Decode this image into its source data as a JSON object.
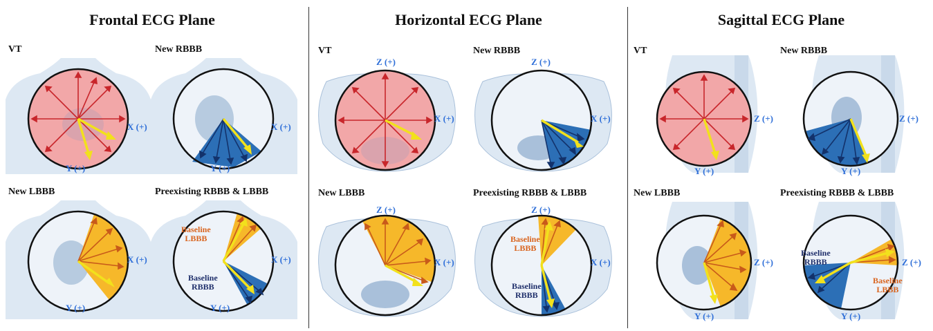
{
  "colors": {
    "vt_fill": "#f2a7a8",
    "vt_arrow": "#c8262b",
    "rbbb_fill": "#2c6fb6",
    "rbbb_arrow": "#13326b",
    "lbbb_fill": "#f6b82a",
    "lbbb_arrow": "#c85a1a",
    "mean_vector": "#f2e11c",
    "axis_label": "#2f6fd8",
    "anatomy": "#c9d9ea"
  },
  "planes": [
    {
      "title": "Frontal ECG Plane",
      "panels": [
        {
          "label": "VT",
          "x_axis": "X (+)",
          "y_axis": "Y (+)"
        },
        {
          "label": "New RBBB",
          "x_axis": "X (+)",
          "y_axis": "Y (+)"
        },
        {
          "label": "New LBBB",
          "x_axis": "X (+)",
          "y_axis": "Y (+)"
        },
        {
          "label": "Preexisting RBBB & LBBB",
          "x_axis": "X (+)",
          "y_axis": "Y (+)",
          "lbbb_note": [
            "Baseline",
            "LBBB"
          ],
          "rbbb_note": [
            "Baseline",
            "RBBB"
          ]
        }
      ]
    },
    {
      "title": "Horizontal ECG Plane",
      "panels": [
        {
          "label": "VT",
          "x_axis": "X (+)",
          "z_axis": "Z (+)"
        },
        {
          "label": "New RBBB",
          "x_axis": "X (+)",
          "z_axis": "Z (+)"
        },
        {
          "label": "New LBBB",
          "x_axis": "X (+)",
          "z_axis": "Z (+)"
        },
        {
          "label": "Preexisting RBBB & LBBB",
          "x_axis": "X (+)",
          "z_axis": "Z (+)",
          "lbbb_note": [
            "Baseline",
            "LBBB"
          ],
          "rbbb_note": [
            "Baseline",
            "RBBB"
          ]
        }
      ]
    },
    {
      "title": "Sagittal ECG Plane",
      "panels": [
        {
          "label": "VT",
          "z_axis": "Z (+)",
          "y_axis": "Y (+)"
        },
        {
          "label": "New RBBB",
          "z_axis": "Z (+)",
          "y_axis": "Y (+)"
        },
        {
          "label": "New LBBB",
          "z_axis": "Z (+)",
          "y_axis": "Y (+)"
        },
        {
          "label": "Preexisting RBBB & LBBB",
          "z_axis": "Z (+)",
          "y_axis": "Y (+)",
          "rbbb_note": [
            "Baseline",
            "RBBB"
          ],
          "lbbb_note": [
            "Baseline",
            "LBBB"
          ]
        }
      ]
    }
  ]
}
